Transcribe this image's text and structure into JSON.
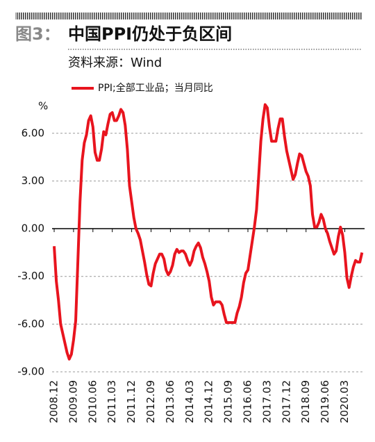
{
  "chart_data": {
    "type": "line",
    "figure_label": "图3：",
    "title": "中国PPI仍处于负区间",
    "subtitle": "资料来源：Wind",
    "y_unit": "%",
    "categories": [
      "2008.12",
      null,
      null,
      null,
      null,
      null,
      null,
      null,
      null,
      "2009.09",
      null,
      null,
      null,
      null,
      null,
      null,
      null,
      null,
      "2010.06",
      null,
      null,
      null,
      null,
      null,
      null,
      null,
      null,
      "2011.03",
      null,
      null,
      null,
      null,
      null,
      null,
      null,
      null,
      "2011.12",
      null,
      null,
      null,
      null,
      null,
      null,
      null,
      null,
      "2012.09",
      null,
      null,
      null,
      null,
      null,
      null,
      null,
      null,
      "2013.06",
      null,
      null,
      null,
      null,
      null,
      null,
      null,
      null,
      "2014.03",
      null,
      null,
      null,
      null,
      null,
      null,
      null,
      null,
      "2014.12",
      null,
      null,
      null,
      null,
      null,
      null,
      null,
      null,
      "2015.09",
      null,
      null,
      null,
      null,
      null,
      null,
      null,
      null,
      "2016.06",
      null,
      null,
      null,
      null,
      null,
      null,
      null,
      null,
      "2017.03",
      null,
      null,
      null,
      null,
      null,
      null,
      null,
      null,
      "2017.12",
      null,
      null,
      null,
      null,
      null,
      null,
      null,
      null,
      "2018.09",
      null,
      null,
      null,
      null,
      null,
      null,
      null,
      null,
      "2019.06",
      null,
      null,
      null,
      null,
      null,
      null,
      null,
      null,
      "2020.03",
      null,
      null,
      null,
      null,
      null,
      null,
      null,
      null
    ],
    "series": [
      {
        "name": "PPI;全部工业品；当月同比",
        "color": "#e8141e",
        "values": [
          -1.1,
          -3.3,
          -4.5,
          -6.0,
          -6.6,
          -7.2,
          -7.8,
          -8.2,
          -7.9,
          -7.0,
          -5.8,
          -2.1,
          1.7,
          4.3,
          5.4,
          5.9,
          6.8,
          7.1,
          6.4,
          4.8,
          4.3,
          4.3,
          5.0,
          6.1,
          5.9,
          6.6,
          7.2,
          7.3,
          6.8,
          6.8,
          7.1,
          7.5,
          7.3,
          6.5,
          5.0,
          2.7,
          1.7,
          0.7,
          0.0,
          -0.3,
          -0.7,
          -1.4,
          -2.1,
          -2.9,
          -3.5,
          -3.6,
          -2.8,
          -2.2,
          -1.9,
          -1.6,
          -1.6,
          -1.9,
          -2.6,
          -2.9,
          -2.7,
          -2.3,
          -1.6,
          -1.3,
          -1.5,
          -1.4,
          -1.4,
          -1.6,
          -2.0,
          -2.3,
          -2.0,
          -1.4,
          -1.1,
          -0.9,
          -1.2,
          -1.8,
          -2.2,
          -2.7,
          -3.3,
          -4.3,
          -4.8,
          -4.6,
          -4.6,
          -4.6,
          -4.8,
          -5.4,
          -5.9,
          -5.9,
          -5.9,
          -5.9,
          -5.9,
          -5.3,
          -4.9,
          -4.3,
          -3.4,
          -2.8,
          -2.6,
          -1.7,
          -0.8,
          0.1,
          1.2,
          3.3,
          5.5,
          6.9,
          7.8,
          7.6,
          6.4,
          5.5,
          5.5,
          5.5,
          6.3,
          6.9,
          6.9,
          5.8,
          4.9,
          4.3,
          3.7,
          3.1,
          3.4,
          4.1,
          4.7,
          4.6,
          4.1,
          3.6,
          3.3,
          2.7,
          0.9,
          0.1,
          0.1,
          0.4,
          0.9,
          0.6,
          0.0,
          -0.3,
          -0.8,
          -1.2,
          -1.6,
          -1.4,
          -0.5,
          0.1,
          -0.4,
          -1.5,
          -3.1,
          -3.7,
          -3.0,
          -2.4,
          -2.0,
          -2.1,
          -2.1,
          -1.5
        ]
      }
    ],
    "ylim": [
      -9,
      8
    ],
    "yticks": [
      {
        "value": 6,
        "label": "6.00"
      },
      {
        "value": 3,
        "label": "3.00"
      },
      {
        "value": 0,
        "label": "0.00"
      },
      {
        "value": -3,
        "label": "-3.00"
      },
      {
        "value": -6,
        "label": "-6.00"
      },
      {
        "value": -9,
        "label": "-9.00"
      }
    ],
    "grid": true
  }
}
